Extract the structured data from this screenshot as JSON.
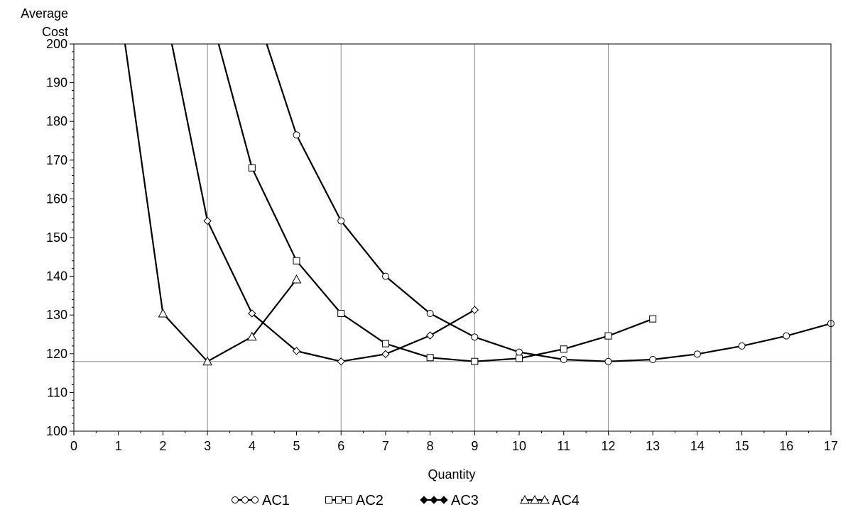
{
  "chart_data": {
    "type": "line",
    "xlabel": "Quantity",
    "ylabel_lines": [
      "Average",
      "Cost"
    ],
    "xlim": [
      0,
      17
    ],
    "ylim": [
      100,
      200
    ],
    "x_ticks": [
      0,
      1,
      2,
      3,
      4,
      5,
      6,
      7,
      8,
      9,
      10,
      11,
      12,
      13,
      14,
      15,
      16,
      17
    ],
    "y_ticks": [
      100,
      110,
      120,
      130,
      140,
      150,
      160,
      170,
      180,
      190,
      200
    ],
    "vertical_reference_lines": [
      3,
      6,
      9,
      12
    ],
    "horizontal_reference_line": 118,
    "legend_position": "bottom",
    "series": [
      {
        "name": "AC1",
        "marker": "circle",
        "x": [
          5,
          6,
          7,
          8,
          9,
          10,
          11,
          12,
          13,
          14,
          15,
          16,
          17
        ],
        "y": [
          176.5,
          154.3,
          140,
          130.4,
          124.3,
          120.4,
          118.5,
          118,
          118.5,
          119.9,
          122,
          124.6,
          127.8
        ],
        "leading": {
          "x": 4.33,
          "y": 200
        }
      },
      {
        "name": "AC2",
        "marker": "square",
        "x": [
          4,
          5,
          6,
          7,
          8,
          9,
          10,
          11,
          12,
          13
        ],
        "y": [
          168,
          144,
          130.4,
          122.6,
          119,
          118,
          118.8,
          121.2,
          124.6,
          129
        ],
        "leading": {
          "x": 3.25,
          "y": 200
        }
      },
      {
        "name": "AC3",
        "marker": "diamond",
        "x": [
          3,
          4,
          5,
          6,
          7,
          8,
          9
        ],
        "y": [
          154.3,
          130.4,
          120.7,
          118,
          119.9,
          124.7,
          131.3
        ],
        "leading": {
          "x": 2.2,
          "y": 200
        }
      },
      {
        "name": "AC4",
        "marker": "triangle",
        "x": [
          2,
          3,
          4,
          5
        ],
        "y": [
          130.4,
          118,
          124.4,
          139.2
        ],
        "leading": {
          "x": 1.15,
          "y": 200
        }
      }
    ]
  }
}
